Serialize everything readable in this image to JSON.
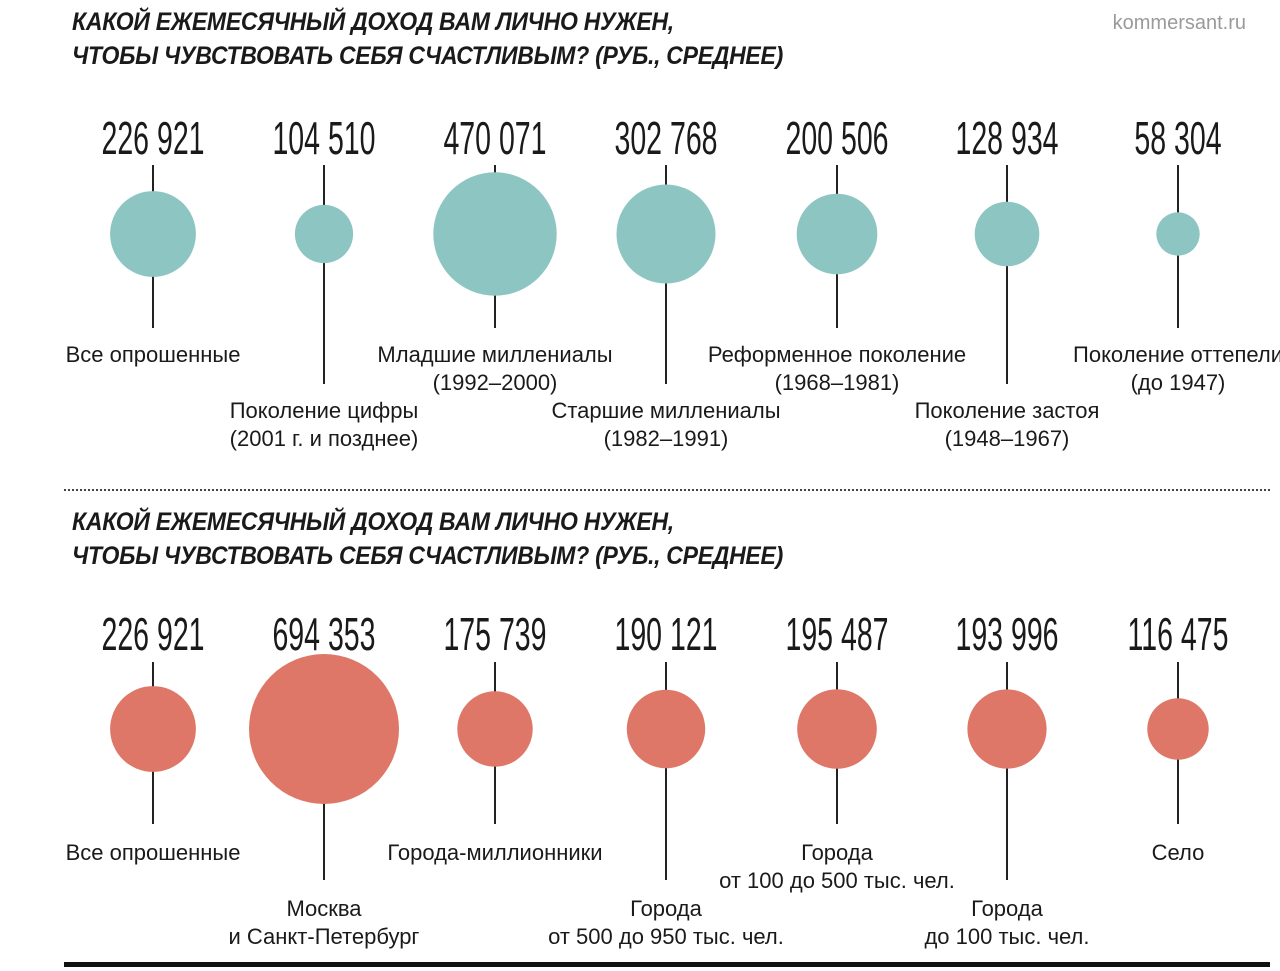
{
  "source": "kommersant.ru",
  "colors": {
    "teal": "#8CC5C1",
    "coral": "#DE7767",
    "stem": "#222222"
  },
  "chart_data": [
    {
      "type": "bubble",
      "title": [
        "КАКОЙ ЕЖЕМЕСЯЧНЫЙ ДОХОД ВАМ ЛИЧНО НУЖЕН,",
        "ЧТОБЫ ЧУВСТВОВАТЬ СЕБЯ СЧАСТЛИВЫМ? (РУБ., СРЕДНЕЕ)"
      ],
      "color": "#8CC5C1",
      "series": [
        {
          "category": [
            "Все опрошенные"
          ],
          "value": 226921,
          "value_label": "226 921"
        },
        {
          "category": [
            "Поколение цифры",
            "(2001 г. и позднее)"
          ],
          "value": 104510,
          "value_label": "104 510"
        },
        {
          "category": [
            "Младшие миллениалы",
            "(1992–2000)"
          ],
          "value": 470071,
          "value_label": "470 071"
        },
        {
          "category": [
            "Старшие миллениалы",
            "(1982–1991)"
          ],
          "value": 302768,
          "value_label": "302 768"
        },
        {
          "category": [
            "Реформенное поколение",
            "(1968–1981)"
          ],
          "value": 200506,
          "value_label": "200 506"
        },
        {
          "category": [
            "Поколение застоя",
            "(1948–1967)"
          ],
          "value": 128934,
          "value_label": "128 934"
        },
        {
          "category": [
            "Поколение оттепели",
            "(до 1947)"
          ],
          "value": 58304,
          "value_label": "58 304"
        }
      ]
    },
    {
      "type": "bubble",
      "title": [
        "КАКОЙ ЕЖЕМЕСЯЧНЫЙ ДОХОД ВАМ ЛИЧНО НУЖЕН,",
        "ЧТОБЫ ЧУВСТВОВАТЬ СЕБЯ СЧАСТЛИВЫМ? (РУБ., СРЕДНЕЕ)"
      ],
      "color": "#DE7767",
      "series": [
        {
          "category": [
            "Все опрошенные"
          ],
          "value": 226921,
          "value_label": "226 921"
        },
        {
          "category": [
            "Москва",
            "и Санкт-Петербург"
          ],
          "value": 694353,
          "value_label": "694 353"
        },
        {
          "category": [
            "Города-миллионники"
          ],
          "value": 175739,
          "value_label": "175 739"
        },
        {
          "category": [
            "Города",
            "от 500 до 950 тыс. чел."
          ],
          "value": 190121,
          "value_label": "190 121"
        },
        {
          "category": [
            "Города",
            "от 100 до 500 тыс. чел."
          ],
          "value": 195487,
          "value_label": "195 487"
        },
        {
          "category": [
            "Города",
            "до 100 тыс. чел."
          ],
          "value": 193996,
          "value_label": "193 996"
        },
        {
          "category": [
            "Село"
          ],
          "value": 116475,
          "value_label": "116 475"
        }
      ]
    }
  ]
}
